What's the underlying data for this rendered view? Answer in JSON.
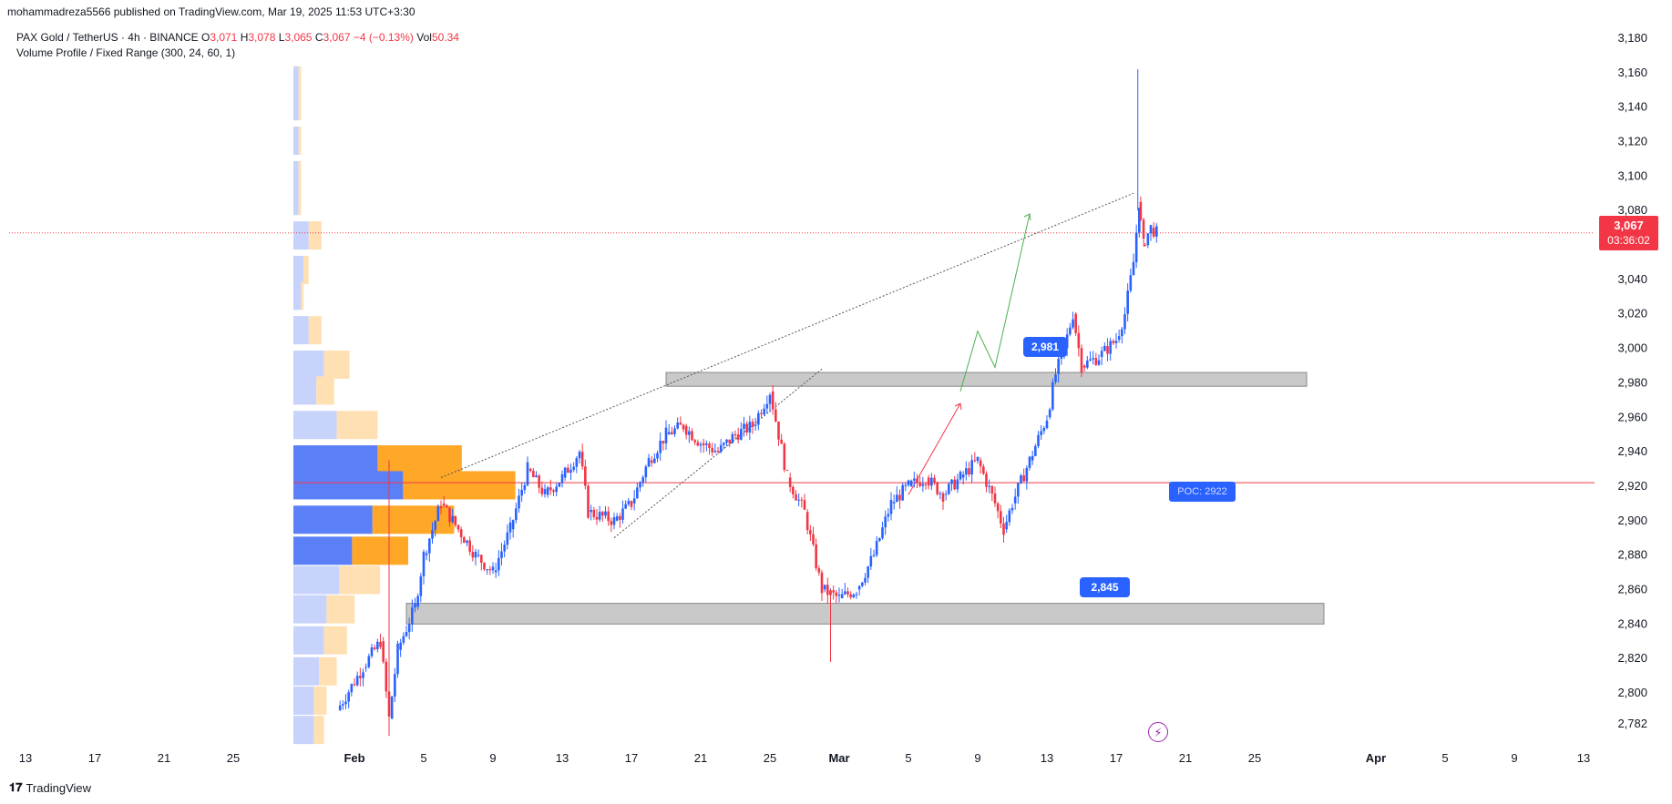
{
  "header": {
    "published": "mohammadreza5566 published on TradingView.com, Mar 19, 2025 11:53 UTC+3:30",
    "symbol": "PAX Gold / TetherUS · 4h · BINANCE",
    "o_label": "O",
    "o_value": "3,071",
    "h_label": "H",
    "h_value": "3,078",
    "l_label": "L",
    "l_value": "3,065",
    "c_label": "C",
    "c_value": "3,067",
    "change": "−4 (−0.13%)",
    "vol_label": "Vol",
    "vol_value": "50.34",
    "indicator": "Volume Profile / Fixed Range (300, 24, 60, 1)"
  },
  "footer": {
    "brand": "TradingView",
    "logo_icon": "tradingview-logo-icon"
  },
  "price_tag": {
    "price": "3,067",
    "countdown": "03:36:02"
  },
  "labels": {
    "upper_level": "2,981",
    "lower_level": "2,845",
    "poc": "POC: 2922"
  },
  "colors": {
    "up": "#2962ff",
    "down": "#f23645",
    "vp_up": "#5b7ff7",
    "vp_down": "#ffa726",
    "vp_up_light": "#c8d3fb",
    "vp_down_light": "#ffe0b2",
    "zone": "#c9c9c9",
    "poc_line": "#f23645"
  },
  "chart_data": {
    "type": "candlestick",
    "timeframe": "4h",
    "ylim": [
      2770,
      3185
    ],
    "y_ticks": [
      3180,
      3160,
      3140,
      3120,
      3100,
      3080,
      3040,
      3020,
      3000,
      2980,
      2960,
      2940,
      2920,
      2900,
      2880,
      2860,
      2840,
      2820,
      2800,
      2782
    ],
    "y_tick_labels": [
      "3,180",
      "3,160",
      "3,140",
      "3,120",
      "3,100",
      "3,080",
      "3,040",
      "3,020",
      "3,000",
      "2,980",
      "2,960",
      "2,940",
      "2,920",
      "2,900",
      "2,880",
      "2,860",
      "2,840",
      "2,820",
      "2,800",
      "2,782"
    ],
    "x_ticks": [
      {
        "label": "13",
        "date": "2025-01-13"
      },
      {
        "label": "17",
        "date": "2025-01-17"
      },
      {
        "label": "21",
        "date": "2025-01-21"
      },
      {
        "label": "25",
        "date": "2025-01-25"
      },
      {
        "label": "Feb",
        "date": "2025-02-01"
      },
      {
        "label": "5",
        "date": "2025-02-05"
      },
      {
        "label": "9",
        "date": "2025-02-09"
      },
      {
        "label": "13",
        "date": "2025-02-13"
      },
      {
        "label": "17",
        "date": "2025-02-17"
      },
      {
        "label": "21",
        "date": "2025-02-21"
      },
      {
        "label": "25",
        "date": "2025-02-25"
      },
      {
        "label": "Mar",
        "date": "2025-03-01"
      },
      {
        "label": "5",
        "date": "2025-03-05"
      },
      {
        "label": "9",
        "date": "2025-03-09"
      },
      {
        "label": "13",
        "date": "2025-03-13"
      },
      {
        "label": "17",
        "date": "2025-03-17"
      },
      {
        "label": "21",
        "date": "2025-03-21"
      },
      {
        "label": "25",
        "date": "2025-03-25"
      },
      {
        "label": "Apr",
        "date": "2025-04-01"
      },
      {
        "label": "5",
        "date": "2025-04-05"
      },
      {
        "label": "9",
        "date": "2025-04-09"
      },
      {
        "label": "13",
        "date": "2025-04-13"
      }
    ],
    "price_path": [
      {
        "date": "2025-01-31T00:00",
        "price": 2790
      },
      {
        "date": "2025-02-01T12:00",
        "price": 2815
      },
      {
        "date": "2025-02-02T12:00",
        "price": 2830
      },
      {
        "date": "2025-02-03T00:00",
        "price": 2785
      },
      {
        "date": "2025-02-03T12:00",
        "price": 2825
      },
      {
        "date": "2025-02-04T12:00",
        "price": 2850
      },
      {
        "date": "2025-02-05T00:00",
        "price": 2880
      },
      {
        "date": "2025-02-06T00:00",
        "price": 2910
      },
      {
        "date": "2025-02-07T00:00",
        "price": 2895
      },
      {
        "date": "2025-02-08T00:00",
        "price": 2880
      },
      {
        "date": "2025-02-09T00:00",
        "price": 2870
      },
      {
        "date": "2025-02-10T00:00",
        "price": 2895
      },
      {
        "date": "2025-02-11T00:00",
        "price": 2930
      },
      {
        "date": "2025-02-12T00:00",
        "price": 2915
      },
      {
        "date": "2025-02-13T00:00",
        "price": 2925
      },
      {
        "date": "2025-02-14T00:00",
        "price": 2940
      },
      {
        "date": "2025-02-14T12:00",
        "price": 2905
      },
      {
        "date": "2025-02-16T00:00",
        "price": 2900
      },
      {
        "date": "2025-02-17T00:00",
        "price": 2910
      },
      {
        "date": "2025-02-18T00:00",
        "price": 2935
      },
      {
        "date": "2025-02-19T00:00",
        "price": 2950
      },
      {
        "date": "2025-02-20T00:00",
        "price": 2955
      },
      {
        "date": "2025-02-21T00:00",
        "price": 2945
      },
      {
        "date": "2025-02-22T00:00",
        "price": 2940
      },
      {
        "date": "2025-02-23T00:00",
        "price": 2950
      },
      {
        "date": "2025-02-24T00:00",
        "price": 2955
      },
      {
        "date": "2025-02-25T00:00",
        "price": 2975
      },
      {
        "date": "2025-02-26T00:00",
        "price": 2925
      },
      {
        "date": "2025-02-27T00:00",
        "price": 2905
      },
      {
        "date": "2025-02-28T00:00",
        "price": 2860
      },
      {
        "date": "2025-03-01T00:00",
        "price": 2855
      },
      {
        "date": "2025-03-02T00:00",
        "price": 2860
      },
      {
        "date": "2025-03-03T00:00",
        "price": 2880
      },
      {
        "date": "2025-03-04T00:00",
        "price": 2910
      },
      {
        "date": "2025-03-05T00:00",
        "price": 2920
      },
      {
        "date": "2025-03-06T00:00",
        "price": 2925
      },
      {
        "date": "2025-03-07T00:00",
        "price": 2915
      },
      {
        "date": "2025-03-08T00:00",
        "price": 2925
      },
      {
        "date": "2025-03-09T00:00",
        "price": 2935
      },
      {
        "date": "2025-03-10T00:00",
        "price": 2910
      },
      {
        "date": "2025-03-10T12:00",
        "price": 2895
      },
      {
        "date": "2025-03-11T00:00",
        "price": 2910
      },
      {
        "date": "2025-03-12T00:00",
        "price": 2935
      },
      {
        "date": "2025-03-13T00:00",
        "price": 2960
      },
      {
        "date": "2025-03-13T12:00",
        "price": 2985
      },
      {
        "date": "2025-03-14T00:00",
        "price": 3000
      },
      {
        "date": "2025-03-14T12:00",
        "price": 3020
      },
      {
        "date": "2025-03-15T00:00",
        "price": 2990
      },
      {
        "date": "2025-03-16T00:00",
        "price": 2995
      },
      {
        "date": "2025-03-17T00:00",
        "price": 3005
      },
      {
        "date": "2025-03-17T12:00",
        "price": 3020
      },
      {
        "date": "2025-03-18T00:00",
        "price": 3050
      },
      {
        "date": "2025-03-18T06:00",
        "price": 3085
      },
      {
        "date": "2025-03-18T12:00",
        "price": 3060
      },
      {
        "date": "2025-03-19T00:00",
        "price": 3070
      },
      {
        "date": "2025-03-19T08:00",
        "price": 3067
      }
    ],
    "last_price": 3067,
    "zones": [
      {
        "from_date": "2025-02-19",
        "to_date": "2025-03-28",
        "low": 2978,
        "high": 2986,
        "label": "2,981"
      },
      {
        "from_date": "2025-02-04",
        "to_date": "2025-03-29",
        "low": 2840,
        "high": 2852,
        "label": "2,845"
      }
    ],
    "poc_price": 2922,
    "volume_profile": {
      "row_height": 18.1,
      "rows": [
        {
          "price": 3155,
          "up": 2,
          "down": 1
        },
        {
          "price": 3140,
          "up": 2,
          "down": 1
        },
        {
          "price": 3120,
          "up": 2,
          "down": 1
        },
        {
          "price": 3100,
          "up": 2,
          "down": 1
        },
        {
          "price": 3085,
          "up": 2,
          "down": 1
        },
        {
          "price": 3065,
          "up": 6,
          "down": 5
        },
        {
          "price": 3045,
          "up": 4,
          "down": 2
        },
        {
          "price": 3030,
          "up": 3,
          "down": 1
        },
        {
          "price": 3010,
          "up": 6,
          "down": 5
        },
        {
          "price": 2990,
          "up": 12,
          "down": 10
        },
        {
          "price": 2975,
          "up": 9,
          "down": 7
        },
        {
          "price": 2955,
          "up": 17,
          "down": 16
        },
        {
          "price": 2935,
          "up": 33,
          "down": 33
        },
        {
          "price": 2920,
          "up": 43,
          "down": 44
        },
        {
          "price": 2900,
          "up": 31,
          "down": 32
        },
        {
          "price": 2882,
          "up": 23,
          "down": 22
        },
        {
          "price": 2865,
          "up": 18,
          "down": 16
        },
        {
          "price": 2848,
          "up": 13,
          "down": 11
        },
        {
          "price": 2830,
          "up": 12,
          "down": 9
        },
        {
          "price": 2812,
          "up": 10,
          "down": 7
        },
        {
          "price": 2795,
          "up": 8,
          "down": 5
        },
        {
          "price": 2778,
          "up": 8,
          "down": 4
        }
      ]
    },
    "drawings": {
      "wedge_upper": [
        {
          "date": "2025-02-06",
          "price": 2925
        },
        {
          "date": "2025-03-18",
          "price": 3090
        }
      ],
      "wedge_lower": [
        {
          "date": "2025-02-16",
          "price": 2890
        },
        {
          "date": "2025-02-28",
          "price": 2988
        }
      ],
      "projection_red": [
        {
          "date": "2025-03-05",
          "price": 2915
        },
        {
          "date": "2025-03-08",
          "price": 2968
        }
      ],
      "projection_green": [
        {
          "date": "2025-03-08",
          "price": 2975
        },
        {
          "date": "2025-03-09",
          "price": 3010
        },
        {
          "date": "2025-03-10",
          "price": 2989
        },
        {
          "date": "2025-03-12",
          "price": 3078
        }
      ]
    }
  }
}
